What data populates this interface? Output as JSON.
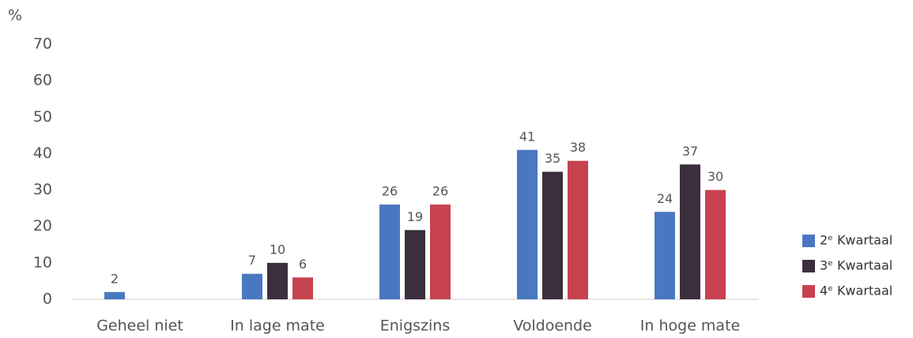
{
  "chart_data": {
    "type": "bar",
    "y_label": "%",
    "categories": [
      "Geheel niet",
      "In lage mate",
      "Enigszins",
      "Voldoende",
      "In hoge mate"
    ],
    "series": [
      {
        "name": "2ᵉ Kwartaal",
        "color": "#4a78c0",
        "values": [
          2,
          7,
          26,
          41,
          24
        ]
      },
      {
        "name": "3ᵉ Kwartaal",
        "color": "#3b2f3d",
        "values": [
          null,
          10,
          19,
          35,
          37
        ]
      },
      {
        "name": "4ᵉ Kwartaal",
        "color": "#c7424f",
        "values": [
          null,
          6,
          26,
          38,
          30
        ]
      }
    ],
    "ylim": [
      0,
      70
    ],
    "yticks": [
      0,
      10,
      20,
      30,
      40,
      50,
      60,
      70
    ],
    "grid": false,
    "legend": "right"
  }
}
